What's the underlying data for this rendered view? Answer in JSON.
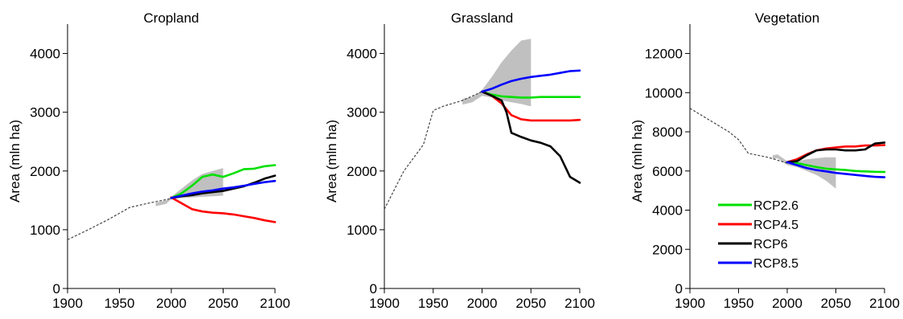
{
  "chart_data": [
    {
      "type": "line",
      "title": "Cropland",
      "xlabel": "",
      "ylabel": "Area (mln ha)",
      "xlim": [
        1900,
        2100
      ],
      "ylim": [
        0,
        4500
      ],
      "xticks": [
        1900,
        1950,
        2000,
        2050,
        2100
      ],
      "yticks": [
        0,
        1000,
        2000,
        3000,
        4000
      ],
      "grid": false,
      "historical": {
        "x": [
          1900,
          1920,
          1940,
          1960,
          1980,
          2000
        ],
        "y": [
          830,
          1000,
          1180,
          1380,
          1460,
          1530
        ]
      },
      "uncertainty_band": {
        "x": [
          1985,
          1990,
          1995,
          2000,
          2010,
          2020,
          2030,
          2040,
          2050
        ],
        "upper": [
          1460,
          1480,
          1500,
          1560,
          1700,
          1840,
          1950,
          2000,
          2050
        ],
        "lower": [
          1400,
          1420,
          1440,
          1520,
          1540,
          1550,
          1560,
          1570,
          1580
        ]
      },
      "series": [
        {
          "name": "RCP2.6",
          "color": "#00e000",
          "x": [
            2000,
            2010,
            2020,
            2030,
            2040,
            2050,
            2060,
            2070,
            2080,
            2090,
            2100
          ],
          "y": [
            1540,
            1620,
            1750,
            1900,
            1940,
            1900,
            1960,
            2030,
            2040,
            2080,
            2100
          ]
        },
        {
          "name": "RCP4.5",
          "color": "#ff0000",
          "x": [
            2000,
            2010,
            2020,
            2030,
            2040,
            2050,
            2060,
            2070,
            2080,
            2090,
            2100
          ],
          "y": [
            1550,
            1450,
            1350,
            1310,
            1290,
            1280,
            1260,
            1230,
            1200,
            1160,
            1130
          ]
        },
        {
          "name": "RCP6",
          "color": "#000000",
          "x": [
            2000,
            2010,
            2020,
            2030,
            2040,
            2050,
            2060,
            2070,
            2080,
            2090,
            2100
          ],
          "y": [
            1540,
            1570,
            1590,
            1620,
            1640,
            1660,
            1700,
            1740,
            1800,
            1870,
            1920
          ]
        },
        {
          "name": "RCP8.5",
          "color": "#0000ff",
          "x": [
            2000,
            2010,
            2020,
            2030,
            2040,
            2050,
            2060,
            2070,
            2080,
            2090,
            2100
          ],
          "y": [
            1540,
            1580,
            1620,
            1650,
            1670,
            1700,
            1720,
            1750,
            1780,
            1810,
            1830
          ]
        }
      ]
    },
    {
      "type": "line",
      "title": "Grassland",
      "xlabel": "",
      "ylabel": "Area (mln ha)",
      "xlim": [
        1900,
        2100
      ],
      "ylim": [
        0,
        4500
      ],
      "xticks": [
        1900,
        1950,
        2000,
        2050,
        2100
      ],
      "yticks": [
        0,
        1000,
        2000,
        3000,
        4000
      ],
      "grid": false,
      "historical": {
        "x": [
          1900,
          1920,
          1940,
          1950,
          1960,
          1980,
          2000
        ],
        "y": [
          1350,
          2000,
          2450,
          3030,
          3100,
          3200,
          3350
        ]
      },
      "uncertainty_band": {
        "x": [
          1980,
          1990,
          2000,
          2010,
          2020,
          2030,
          2040,
          2050
        ],
        "upper": [
          3230,
          3260,
          3380,
          3600,
          3850,
          4050,
          4220,
          4250
        ],
        "lower": [
          3130,
          3170,
          3280,
          3250,
          3200,
          3170,
          3140,
          3100
        ]
      },
      "series": [
        {
          "name": "RCP2.6",
          "color": "#00e000",
          "x": [
            2000,
            2010,
            2020,
            2030,
            2040,
            2050,
            2060,
            2070,
            2080,
            2090,
            2100
          ],
          "y": [
            3350,
            3300,
            3270,
            3260,
            3250,
            3250,
            3260,
            3260,
            3260,
            3260,
            3260
          ]
        },
        {
          "name": "RCP4.5",
          "color": "#ff0000",
          "x": [
            2000,
            2010,
            2020,
            2030,
            2040,
            2050,
            2060,
            2070,
            2080,
            2090,
            2100
          ],
          "y": [
            3350,
            3280,
            3150,
            2950,
            2880,
            2860,
            2860,
            2860,
            2860,
            2860,
            2870
          ]
        },
        {
          "name": "RCP6",
          "color": "#000000",
          "x": [
            2000,
            2010,
            2020,
            2025,
            2030,
            2040,
            2050,
            2060,
            2070,
            2080,
            2090,
            2100
          ],
          "y": [
            3350,
            3280,
            3200,
            3000,
            2650,
            2580,
            2520,
            2480,
            2420,
            2250,
            1900,
            1800
          ]
        },
        {
          "name": "RCP8.5",
          "color": "#0000ff",
          "x": [
            2000,
            2010,
            2020,
            2030,
            2040,
            2050,
            2060,
            2070,
            2080,
            2090,
            2100
          ],
          "y": [
            3350,
            3400,
            3470,
            3530,
            3570,
            3600,
            3620,
            3640,
            3670,
            3700,
            3710
          ]
        }
      ]
    },
    {
      "type": "line",
      "title": "Vegetation",
      "xlabel": "",
      "ylabel": "Area (mln ha)",
      "xlim": [
        1900,
        2100
      ],
      "ylim": [
        0,
        13500
      ],
      "xticks": [
        1900,
        1950,
        2000,
        2050,
        2100
      ],
      "yticks": [
        0,
        2000,
        4000,
        6000,
        8000,
        10000,
        12000
      ],
      "grid": false,
      "legend_position": "lower-left",
      "historical": {
        "x": [
          1900,
          1920,
          1940,
          1950,
          1960,
          1980,
          2000
        ],
        "y": [
          9200,
          8600,
          8000,
          7600,
          6900,
          6700,
          6400
        ]
      },
      "uncertainty_band": {
        "x": [
          1985,
          1990,
          2000,
          2010,
          2020,
          2030,
          2040,
          2050
        ],
        "upper": [
          6800,
          6850,
          6500,
          6500,
          6600,
          6650,
          6700,
          6700
        ],
        "lower": [
          6600,
          6650,
          6300,
          6200,
          6000,
          5800,
          5500,
          5100
        ]
      },
      "series": [
        {
          "name": "RCP2.6",
          "color": "#00e000",
          "x": [
            2000,
            2010,
            2020,
            2030,
            2040,
            2050,
            2060,
            2070,
            2080,
            2090,
            2100
          ],
          "y": [
            6450,
            6400,
            6300,
            6200,
            6120,
            6080,
            6050,
            6000,
            5980,
            5960,
            5950
          ]
        },
        {
          "name": "RCP4.5",
          "color": "#ff0000",
          "x": [
            2000,
            2010,
            2020,
            2030,
            2040,
            2050,
            2060,
            2070,
            2080,
            2090,
            2100
          ],
          "y": [
            6450,
            6600,
            6850,
            7050,
            7150,
            7200,
            7250,
            7250,
            7300,
            7300,
            7320
          ]
        },
        {
          "name": "RCP6",
          "color": "#000000",
          "x": [
            2000,
            2010,
            2020,
            2030,
            2040,
            2050,
            2060,
            2070,
            2080,
            2090,
            2100
          ],
          "y": [
            6450,
            6500,
            6800,
            7050,
            7100,
            7100,
            7050,
            7050,
            7100,
            7400,
            7450
          ]
        },
        {
          "name": "RCP8.5",
          "color": "#0000ff",
          "x": [
            2000,
            2010,
            2020,
            2030,
            2040,
            2050,
            2060,
            2070,
            2080,
            2090,
            2100
          ],
          "y": [
            6450,
            6300,
            6150,
            6050,
            5980,
            5900,
            5850,
            5800,
            5750,
            5700,
            5680
          ]
        }
      ]
    }
  ]
}
